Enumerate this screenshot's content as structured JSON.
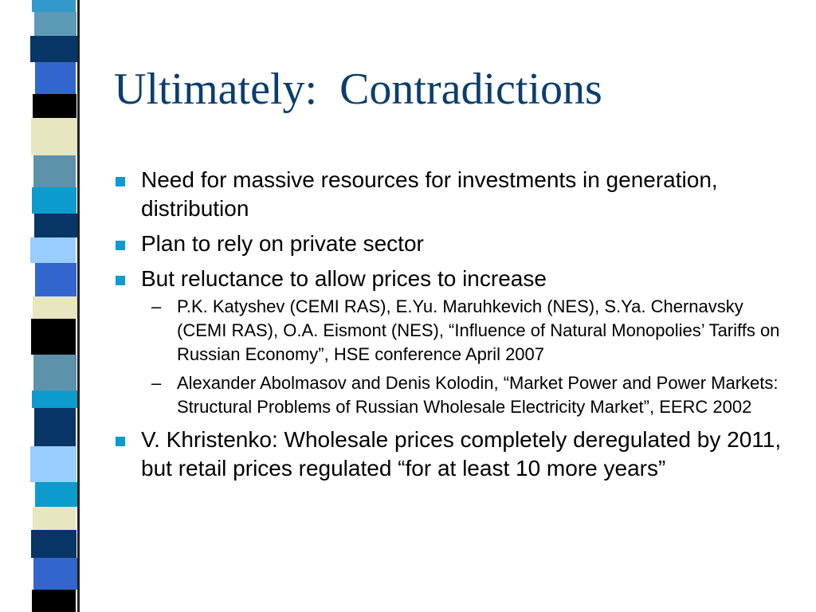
{
  "title": "Ultimately:  Contradictions",
  "bullets": [
    {
      "text": "Need for massive resources for investments in generation, distribution"
    },
    {
      "text": "Plan to rely on private sector"
    },
    {
      "text": "But reluctance to allow prices to increase",
      "subitems": [
        "P.K. Katyshev (CEMI RAS), E.Yu. Maruhkevich (NES), S.Ya. Chernavsky (CEMI RAS), O.A. Eismont (NES), “Influence of Natural Monopolies’ Tariffs on Russian Economy”, HSE conference April 2007",
        "Alexander Abolmasov and Denis Kolodin, “Market Power and Power Markets:  Structural Problems of Russian Wholesale Electricity Market”, EERC 2002"
      ]
    },
    {
      "text": "V. Khristenko:  Wholesale prices completely deregulated by 2011, but retail prices regulated “for at least 10 more years”"
    }
  ]
}
